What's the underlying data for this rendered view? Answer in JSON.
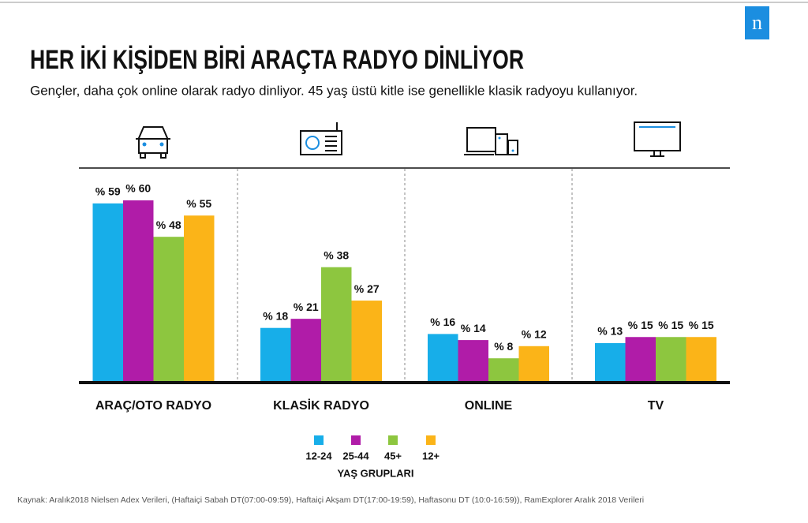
{
  "brand": "n",
  "chart_data": {
    "type": "bar",
    "title": "HER İKİ KİŞİDEN BİRİ ARAÇTA RADYO DİNLİYOR",
    "subtitle": "Gençler, daha çok online olarak radyo dinliyor. 45 yaş üstü kitle ise genellikle klasik radyoyu kullanıyor.",
    "categories": [
      "ARAÇ/OTO RADYO",
      "KLASİK RADYO",
      "ONLINE",
      "TV"
    ],
    "series": [
      {
        "name": "12-24",
        "color": "#17aee9",
        "values": [
          59,
          18,
          16,
          13
        ],
        "value_labels": [
          "% 59",
          "% 18",
          "% 16",
          "% 13"
        ]
      },
      {
        "name": "25-44",
        "color": "#b01ca8",
        "values": [
          60,
          21,
          14,
          15
        ],
        "value_labels": [
          "% 60",
          "% 21",
          "% 14",
          "% 15"
        ]
      },
      {
        "name": "45+",
        "color": "#8dc63f",
        "values": [
          48,
          38,
          8,
          15
        ],
        "value_labels": [
          "% 48",
          "% 38",
          "% 8",
          "% 15"
        ]
      },
      {
        "name": "12+",
        "color": "#fbb418",
        "values": [
          55,
          27,
          12,
          15
        ],
        "value_labels": [
          "% 55",
          "% 27",
          "% 12",
          "% 15"
        ]
      }
    ],
    "legend_title": "YAŞ GRUPLARI",
    "source": "Kaynak: Aralık2018 Nielsen Adex Verileri, (Haftaiçi Sabah DT(07:00-09:59), Haftaiçi Akşam DT(17:00-19:59), Haftasonu DT (10:0-16:59)), RamExplorer Aralık 2018 Verileri"
  }
}
